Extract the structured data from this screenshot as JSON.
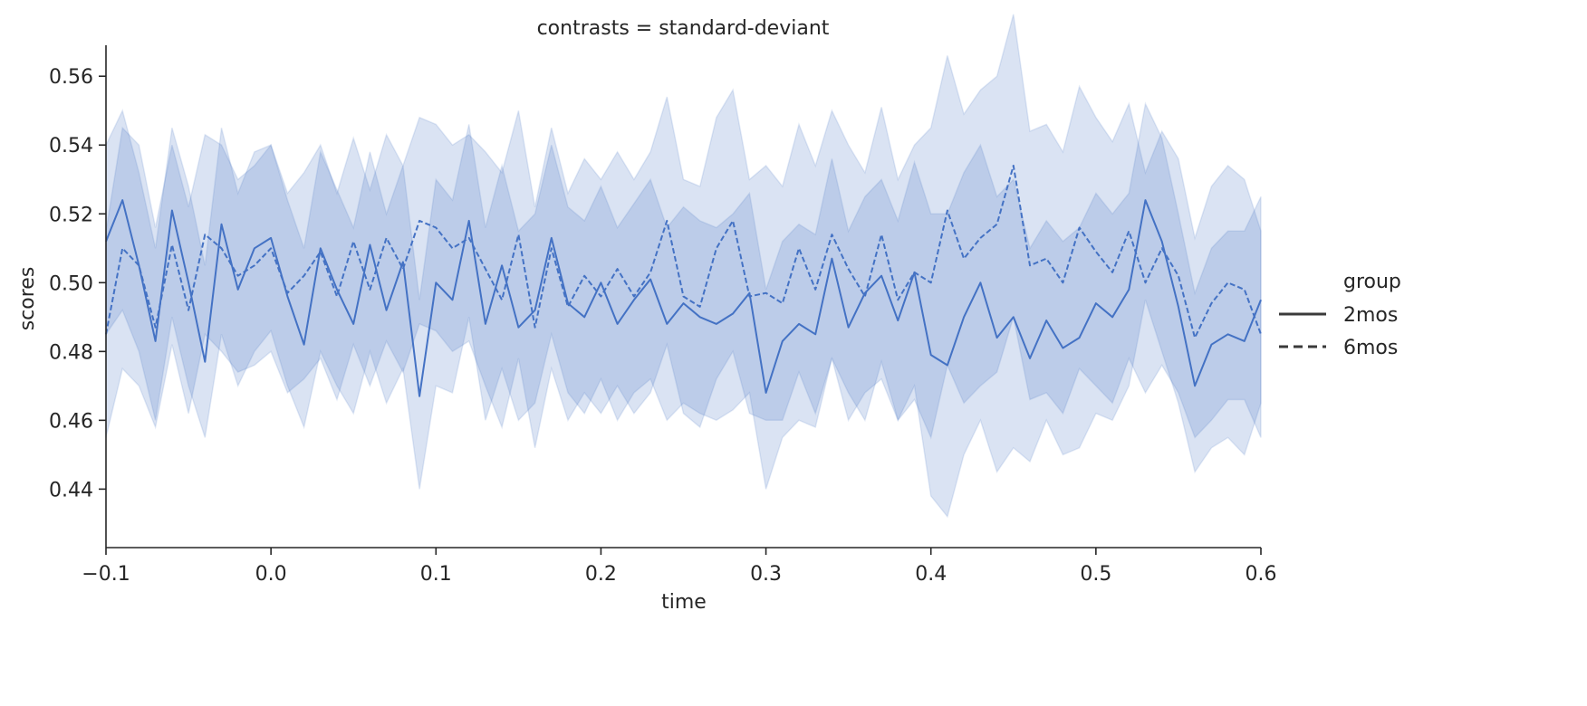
{
  "chart_data": {
    "type": "line",
    "title": "contrasts = standard-deviant",
    "xlabel": "time",
    "ylabel": "scores",
    "xlim": [
      -0.1,
      0.6
    ],
    "ylim": [
      0.423,
      0.569
    ],
    "xticks": [
      -0.1,
      0.0,
      0.1,
      0.2,
      0.3,
      0.4,
      0.5,
      0.6
    ],
    "xtick_labels": [
      "−0.1",
      "0.0",
      "0.1",
      "0.2",
      "0.3",
      "0.4",
      "0.5",
      "0.6"
    ],
    "yticks": [
      0.44,
      0.46,
      0.48,
      0.5,
      0.52,
      0.54,
      0.56
    ],
    "ytick_labels": [
      "0.44",
      "0.46",
      "0.48",
      "0.50",
      "0.52",
      "0.54",
      "0.56"
    ],
    "grid": false,
    "legend": {
      "title": "group",
      "placement": "right",
      "entries": [
        {
          "label": "2mos",
          "style": "solid"
        },
        {
          "label": "6mos",
          "style": "dashed"
        }
      ]
    },
    "colors": {
      "line": "#4472c4",
      "band": "#4472c4",
      "legend_line": "#3a3a3a",
      "axis": "#262626"
    },
    "x": [
      -0.1,
      -0.09,
      -0.08,
      -0.07,
      -0.06,
      -0.05,
      -0.04,
      -0.03,
      -0.02,
      -0.01,
      0.0,
      0.01,
      0.02,
      0.03,
      0.04,
      0.05,
      0.06,
      0.07,
      0.08,
      0.09,
      0.1,
      0.11,
      0.12,
      0.13,
      0.14,
      0.15,
      0.16,
      0.17,
      0.18,
      0.19,
      0.2,
      0.21,
      0.22,
      0.23,
      0.24,
      0.25,
      0.26,
      0.27,
      0.28,
      0.29,
      0.3,
      0.31,
      0.32,
      0.33,
      0.34,
      0.35,
      0.36,
      0.37,
      0.38,
      0.39,
      0.4,
      0.41,
      0.42,
      0.43,
      0.44,
      0.45,
      0.46,
      0.47,
      0.48,
      0.49,
      0.5,
      0.51,
      0.52,
      0.53,
      0.54,
      0.55,
      0.56,
      0.57,
      0.58,
      0.59,
      0.6
    ],
    "series": [
      {
        "name": "2mos",
        "dash": "solid",
        "values": [
          0.512,
          0.524,
          0.505,
          0.483,
          0.521,
          0.5,
          0.477,
          0.517,
          0.498,
          0.51,
          0.513,
          0.496,
          0.482,
          0.51,
          0.498,
          0.488,
          0.511,
          0.492,
          0.506,
          0.467,
          0.5,
          0.495,
          0.518,
          0.488,
          0.505,
          0.487,
          0.492,
          0.513,
          0.494,
          0.49,
          0.5,
          0.488,
          0.495,
          0.501,
          0.488,
          0.494,
          0.49,
          0.488,
          0.491,
          0.497,
          0.468,
          0.483,
          0.488,
          0.485,
          0.507,
          0.487,
          0.497,
          0.502,
          0.489,
          0.503,
          0.479,
          0.476,
          0.49,
          0.5,
          0.484,
          0.49,
          0.478,
          0.489,
          0.481,
          0.484,
          0.494,
          0.49,
          0.498,
          0.524,
          0.512,
          0.493,
          0.47,
          0.482,
          0.485,
          0.483,
          0.495
        ],
        "ci_lower": [
          0.485,
          0.492,
          0.48,
          0.46,
          0.49,
          0.47,
          0.455,
          0.485,
          0.47,
          0.48,
          0.486,
          0.47,
          0.458,
          0.48,
          0.47,
          0.462,
          0.48,
          0.465,
          0.475,
          0.44,
          0.47,
          0.468,
          0.49,
          0.46,
          0.475,
          0.46,
          0.465,
          0.485,
          0.468,
          0.462,
          0.472,
          0.46,
          0.468,
          0.472,
          0.46,
          0.465,
          0.462,
          0.46,
          0.463,
          0.468,
          0.44,
          0.455,
          0.46,
          0.458,
          0.478,
          0.46,
          0.468,
          0.472,
          0.46,
          0.47,
          0.438,
          0.432,
          0.45,
          0.46,
          0.445,
          0.452,
          0.448,
          0.46,
          0.45,
          0.452,
          0.462,
          0.46,
          0.47,
          0.495,
          0.48,
          0.465,
          0.445,
          0.452,
          0.455,
          0.45,
          0.465
        ],
        "ci_upper": [
          0.54,
          0.55,
          0.532,
          0.51,
          0.545,
          0.528,
          0.505,
          0.545,
          0.526,
          0.538,
          0.54,
          0.524,
          0.51,
          0.538,
          0.527,
          0.516,
          0.538,
          0.52,
          0.534,
          0.495,
          0.53,
          0.524,
          0.546,
          0.516,
          0.534,
          0.515,
          0.52,
          0.54,
          0.522,
          0.518,
          0.528,
          0.516,
          0.523,
          0.53,
          0.516,
          0.522,
          0.518,
          0.516,
          0.52,
          0.526,
          0.498,
          0.512,
          0.517,
          0.514,
          0.536,
          0.515,
          0.525,
          0.53,
          0.518,
          0.535,
          0.52,
          0.52,
          0.532,
          0.54,
          0.525,
          0.53,
          0.51,
          0.518,
          0.512,
          0.516,
          0.526,
          0.52,
          0.526,
          0.552,
          0.542,
          0.52,
          0.497,
          0.51,
          0.515,
          0.515,
          0.525
        ]
      },
      {
        "name": "6mos",
        "dash": "dashed",
        "values": [
          0.485,
          0.51,
          0.505,
          0.487,
          0.511,
          0.492,
          0.514,
          0.51,
          0.502,
          0.505,
          0.51,
          0.497,
          0.502,
          0.509,
          0.496,
          0.512,
          0.498,
          0.513,
          0.504,
          0.518,
          0.516,
          0.51,
          0.513,
          0.504,
          0.495,
          0.514,
          0.487,
          0.51,
          0.493,
          0.502,
          0.496,
          0.504,
          0.496,
          0.503,
          0.518,
          0.496,
          0.493,
          0.51,
          0.518,
          0.496,
          0.497,
          0.494,
          0.51,
          0.498,
          0.514,
          0.504,
          0.496,
          0.514,
          0.495,
          0.503,
          0.5,
          0.521,
          0.507,
          0.513,
          0.517,
          0.534,
          0.505,
          0.507,
          0.5,
          0.516,
          0.509,
          0.503,
          0.515,
          0.5,
          0.51,
          0.502,
          0.484,
          0.494,
          0.5,
          0.498,
          0.485
        ],
        "ci_lower": [
          0.455,
          0.475,
          0.47,
          0.458,
          0.482,
          0.462,
          0.485,
          0.48,
          0.474,
          0.476,
          0.48,
          0.468,
          0.472,
          0.478,
          0.466,
          0.482,
          0.47,
          0.483,
          0.474,
          0.488,
          0.486,
          0.48,
          0.483,
          0.47,
          0.458,
          0.478,
          0.452,
          0.475,
          0.46,
          0.468,
          0.462,
          0.47,
          0.462,
          0.468,
          0.482,
          0.462,
          0.458,
          0.472,
          0.48,
          0.462,
          0.46,
          0.46,
          0.474,
          0.462,
          0.478,
          0.468,
          0.46,
          0.477,
          0.46,
          0.466,
          0.455,
          0.476,
          0.465,
          0.47,
          0.474,
          0.49,
          0.466,
          0.468,
          0.462,
          0.475,
          0.47,
          0.465,
          0.478,
          0.468,
          0.476,
          0.468,
          0.455,
          0.46,
          0.466,
          0.466,
          0.455
        ],
        "ci_upper": [
          0.515,
          0.545,
          0.54,
          0.516,
          0.54,
          0.522,
          0.543,
          0.54,
          0.53,
          0.534,
          0.54,
          0.526,
          0.532,
          0.54,
          0.526,
          0.542,
          0.527,
          0.543,
          0.534,
          0.548,
          0.546,
          0.54,
          0.543,
          0.538,
          0.532,
          0.55,
          0.522,
          0.545,
          0.526,
          0.536,
          0.53,
          0.538,
          0.53,
          0.538,
          0.554,
          0.53,
          0.528,
          0.548,
          0.556,
          0.53,
          0.534,
          0.528,
          0.546,
          0.534,
          0.55,
          0.54,
          0.532,
          0.551,
          0.53,
          0.54,
          0.545,
          0.566,
          0.549,
          0.556,
          0.56,
          0.578,
          0.544,
          0.546,
          0.538,
          0.557,
          0.548,
          0.541,
          0.552,
          0.532,
          0.544,
          0.536,
          0.513,
          0.528,
          0.534,
          0.53,
          0.515
        ]
      }
    ]
  }
}
